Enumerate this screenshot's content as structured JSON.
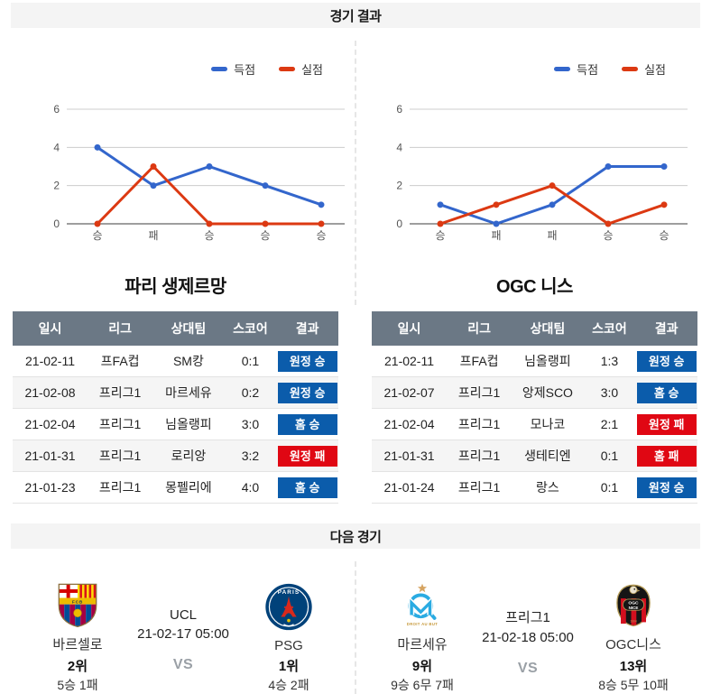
{
  "colors": {
    "chart_scored_blue": "#3366cc",
    "chart_conceded_red": "#dc3912",
    "badge_win_blue": "#0b5cab",
    "badge_lose_red": "#e00713",
    "table_header_gray": "#6b7885",
    "section_bar_gray": "#f4f4f4",
    "vs_gray": "#9aa0a6"
  },
  "sections": {
    "results_header": "경기 결과",
    "next_header": "다음 경기"
  },
  "chart_data": [
    {
      "type": "line",
      "team": "파리 생제르망",
      "categories": [
        "승",
        "패",
        "승",
        "승",
        "승"
      ],
      "series": [
        {
          "name": "득점",
          "color": "#3366cc",
          "values": [
            4,
            2,
            3,
            2,
            1
          ]
        },
        {
          "name": "실점",
          "color": "#dc3912",
          "values": [
            0,
            3,
            0,
            0,
            0
          ]
        }
      ],
      "ylim": [
        0,
        6
      ],
      "yticks": [
        0,
        2,
        4,
        6
      ],
      "grid": "on",
      "legend_position": "top-right"
    },
    {
      "type": "line",
      "team": "OGC 니스",
      "categories": [
        "승",
        "패",
        "패",
        "승",
        "승"
      ],
      "series": [
        {
          "name": "득점",
          "color": "#3366cc",
          "values": [
            1,
            0,
            1,
            3,
            3
          ]
        },
        {
          "name": "실점",
          "color": "#dc3912",
          "values": [
            0,
            1,
            2,
            0,
            1
          ]
        }
      ],
      "ylim": [
        0,
        6
      ],
      "yticks": [
        0,
        2,
        4,
        6
      ],
      "grid": "on",
      "legend_position": "top-right"
    }
  ],
  "tables": [
    {
      "title": "파리 생제르망",
      "headers": [
        "일시",
        "리그",
        "상대팀",
        "스코어",
        "결과"
      ],
      "rows": [
        {
          "date": "21-02-11",
          "league": "프FA컵",
          "opponent": "SM캉",
          "score": "0:1",
          "result": "원정 승",
          "win": true
        },
        {
          "date": "21-02-08",
          "league": "프리그1",
          "opponent": "마르세유",
          "score": "0:2",
          "result": "원정 승",
          "win": true
        },
        {
          "date": "21-02-04",
          "league": "프리그1",
          "opponent": "님올랭피",
          "score": "3:0",
          "result": "홈 승",
          "win": true
        },
        {
          "date": "21-01-31",
          "league": "프리그1",
          "opponent": "로리앙",
          "score": "3:2",
          "result": "원정 패",
          "win": false
        },
        {
          "date": "21-01-23",
          "league": "프리그1",
          "opponent": "몽펠리에",
          "score": "4:0",
          "result": "홈 승",
          "win": true
        }
      ]
    },
    {
      "title": "OGC 니스",
      "headers": [
        "일시",
        "리그",
        "상대팀",
        "스코어",
        "결과"
      ],
      "rows": [
        {
          "date": "21-02-11",
          "league": "프FA컵",
          "opponent": "님올랭피",
          "score": "1:3",
          "result": "원정 승",
          "win": true
        },
        {
          "date": "21-02-07",
          "league": "프리그1",
          "opponent": "앙제SCO",
          "score": "3:0",
          "result": "홈 승",
          "win": true
        },
        {
          "date": "21-02-04",
          "league": "프리그1",
          "opponent": "모나코",
          "score": "2:1",
          "result": "원정 패",
          "win": false
        },
        {
          "date": "21-01-31",
          "league": "프리그1",
          "opponent": "생테티엔",
          "score": "0:1",
          "result": "홈 패",
          "win": false
        },
        {
          "date": "21-01-24",
          "league": "프리그1",
          "opponent": "랑스",
          "score": "0:1",
          "result": "원정 승",
          "win": true
        }
      ]
    }
  ],
  "next_matches": [
    {
      "league": "UCL",
      "datetime": "21-02-17 05:00",
      "vs": "VS",
      "home": {
        "name": "바르셀로",
        "rank": "2위",
        "record": "5승 1패",
        "logo": "barcelona-crest"
      },
      "away": {
        "name": "PSG",
        "rank": "1위",
        "record": "4승 2패",
        "logo": "psg-crest"
      }
    },
    {
      "league": "프리그1",
      "datetime": "21-02-18 05:00",
      "vs": "VS",
      "home": {
        "name": "마르세유",
        "rank": "9위",
        "record": "9승 6무 7패",
        "logo": "marseille-crest"
      },
      "away": {
        "name": "OGC니스",
        "rank": "13위",
        "record": "8승 5무 10패",
        "logo": "ogc-nice-crest"
      }
    }
  ]
}
